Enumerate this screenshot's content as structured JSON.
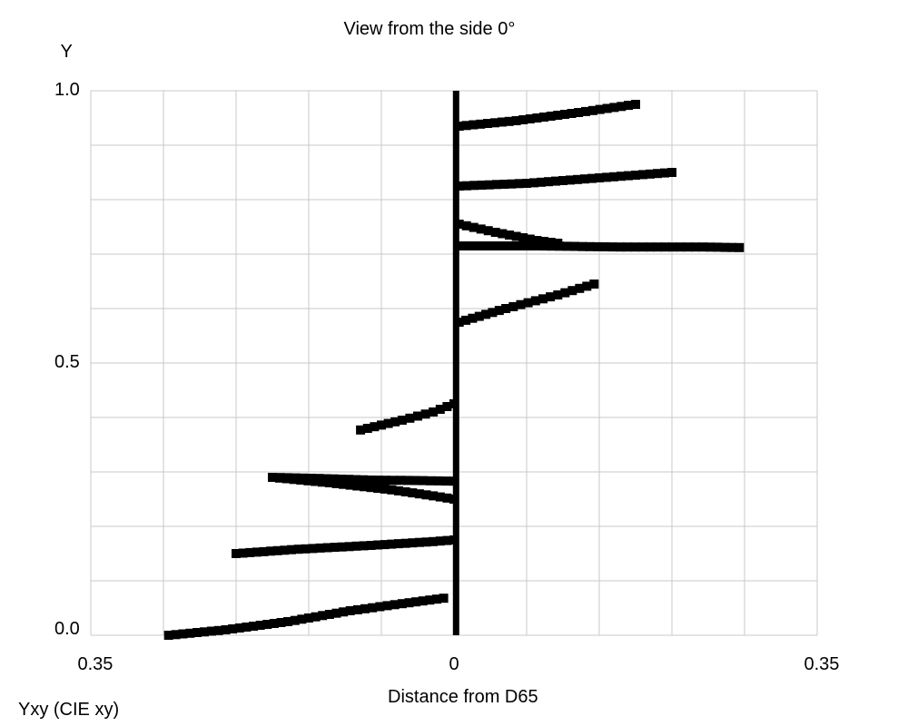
{
  "chart_data": {
    "type": "scatter",
    "title": "View from the side 0°",
    "xlabel": "Distance from D65",
    "ylabel": "Y",
    "footer": "Yxy (CIE xy)",
    "xlim": [
      -0.35,
      0.35
    ],
    "ylim": [
      0,
      1
    ],
    "x_tick_labels": [
      "0.35",
      "0",
      "0.35"
    ],
    "y_tick_labels": [
      "0.0",
      "0.5",
      "1.0"
    ],
    "grid": true,
    "colors": {
      "marks": "#000000",
      "grid": "#c8c8c8",
      "axis_line": "#000000"
    },
    "series": [
      {
        "points": [
          [
            0.002,
            0.0
          ],
          [
            0.002,
            1.0
          ]
        ]
      },
      {
        "points": [
          [
            -0.275,
            0.0
          ],
          [
            -0.22,
            0.01
          ],
          [
            -0.16,
            0.025
          ],
          [
            -0.1,
            0.045
          ],
          [
            -0.05,
            0.058
          ],
          [
            -0.01,
            0.068
          ]
        ]
      },
      {
        "points": [
          [
            -0.21,
            0.15
          ],
          [
            -0.15,
            0.158
          ],
          [
            -0.08,
            0.165
          ],
          [
            -0.02,
            0.172
          ],
          [
            0.0,
            0.175
          ]
        ]
      },
      {
        "points": [
          [
            -0.175,
            0.29
          ],
          [
            -0.13,
            0.288
          ],
          [
            -0.08,
            0.285
          ],
          [
            -0.03,
            0.284
          ],
          [
            0.0,
            0.283
          ]
        ]
      },
      {
        "points": [
          [
            -0.175,
            0.29
          ],
          [
            -0.12,
            0.28
          ],
          [
            -0.06,
            0.267
          ],
          [
            -0.02,
            0.256
          ],
          [
            0.0,
            0.25
          ]
        ]
      },
      {
        "points": [
          [
            -0.09,
            0.377
          ],
          [
            -0.05,
            0.395
          ],
          [
            -0.02,
            0.41
          ],
          [
            0.0,
            0.425
          ]
        ]
      },
      {
        "points": [
          [
            0.005,
            0.575
          ],
          [
            0.05,
            0.6
          ],
          [
            0.1,
            0.625
          ],
          [
            0.135,
            0.645
          ]
        ]
      },
      {
        "points": [
          [
            0.005,
            0.715
          ],
          [
            0.08,
            0.715
          ],
          [
            0.16,
            0.713
          ],
          [
            0.24,
            0.713
          ],
          [
            0.275,
            0.712
          ]
        ]
      },
      {
        "points": [
          [
            0.005,
            0.755
          ],
          [
            0.04,
            0.74
          ],
          [
            0.08,
            0.725
          ],
          [
            0.1,
            0.72
          ]
        ]
      },
      {
        "points": [
          [
            0.005,
            0.825
          ],
          [
            0.07,
            0.83
          ],
          [
            0.14,
            0.84
          ],
          [
            0.21,
            0.85
          ]
        ]
      },
      {
        "points": [
          [
            0.005,
            0.935
          ],
          [
            0.06,
            0.945
          ],
          [
            0.12,
            0.96
          ],
          [
            0.175,
            0.975
          ]
        ]
      }
    ]
  }
}
